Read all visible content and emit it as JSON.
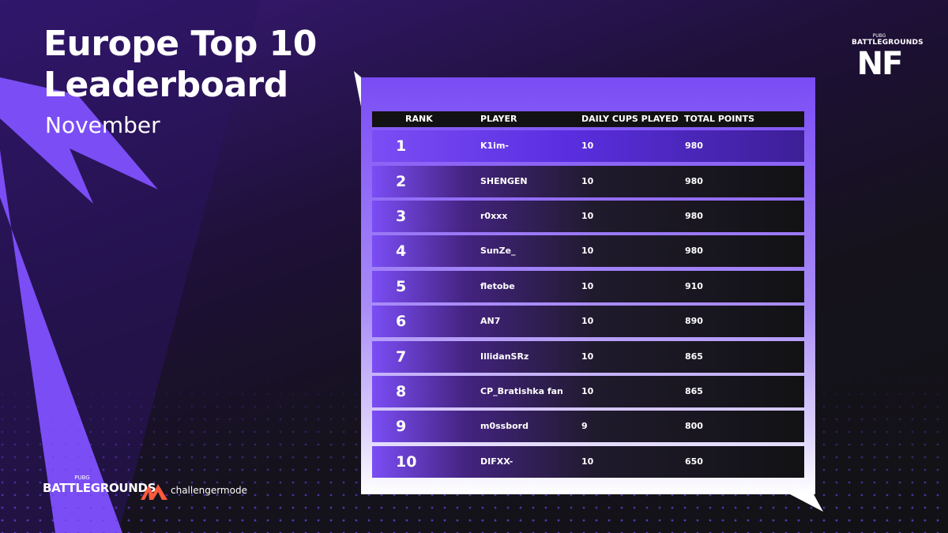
{
  "header": {
    "title_line1": "Europe Top 10",
    "title_line2": "Leaderboard",
    "subtitle": "November"
  },
  "logos": {
    "nf_top": "PUBG",
    "nf_mid": "BATTLEGROUNDS",
    "nf_big": "NF",
    "pubg_top": "PUBG",
    "pubg_big": "BATTLEGROUNDS",
    "challengermode": "challengermode"
  },
  "table": {
    "columns": [
      "RANK",
      "PLAYER",
      "DAILY CUPS PLAYED",
      "TOTAL POINTS"
    ],
    "rows": [
      {
        "rank": "1",
        "player": "K1im-",
        "cups": "10",
        "points": "980"
      },
      {
        "rank": "2",
        "player": "SHENGEN",
        "cups": "10",
        "points": "980"
      },
      {
        "rank": "3",
        "player": "r0xxx",
        "cups": "10",
        "points": "980"
      },
      {
        "rank": "4",
        "player": "SunZe_",
        "cups": "10",
        "points": "980"
      },
      {
        "rank": "5",
        "player": "fletobe",
        "cups": "10",
        "points": "910"
      },
      {
        "rank": "6",
        "player": "AN7",
        "cups": "10",
        "points": "890"
      },
      {
        "rank": "7",
        "player": "IllidanSRz",
        "cups": "10",
        "points": "865"
      },
      {
        "rank": "8",
        "player": "CP_Bratishka fan",
        "cups": "10",
        "points": "865"
      },
      {
        "rank": "9",
        "player": "m0ssbord",
        "cups": "9",
        "points": "800"
      },
      {
        "rank": "10",
        "player": "DIFXX-",
        "cups": "10",
        "points": "650"
      }
    ]
  },
  "colors": {
    "accent_purple": "#7b4df5",
    "dark": "#121214"
  }
}
